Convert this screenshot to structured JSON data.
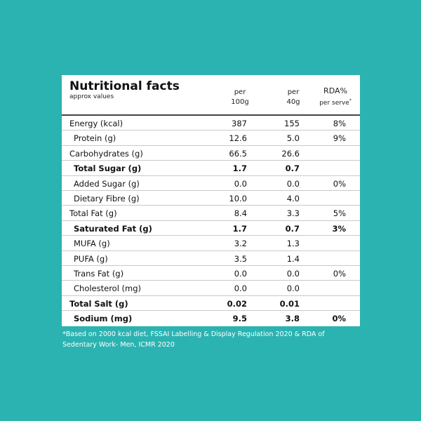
{
  "header": {
    "title": "Nutritional facts",
    "subtitle": "approx values",
    "columns": [
      {
        "line1": "per",
        "line2": "100g"
      },
      {
        "line1": "per",
        "line2": "40g"
      },
      {
        "line1": "RDA%",
        "line2": "per serve",
        "mark": "*"
      }
    ]
  },
  "table": {
    "rows": [
      {
        "label": "Energy (kcal)",
        "per_100g": "387",
        "per_40g": "155",
        "rda": "8%"
      },
      {
        "label": "Protein (g)",
        "per_100g": "12.6",
        "per_40g": "5.0",
        "rda": "9%",
        "indent": true
      },
      {
        "label": "Carbohydrates (g)",
        "per_100g": "66.5",
        "per_40g": "26.6"
      },
      {
        "label": "Total Sugar (g)",
        "per_100g": "1.7",
        "per_40g": "0.7",
        "indent": true,
        "bold": true
      },
      {
        "label": "Added Sugar (g)",
        "per_100g": "0.0",
        "per_40g": "0.0",
        "rda": "0%",
        "indent": true
      },
      {
        "label": "Dietary Fibre (g)",
        "per_100g": "10.0",
        "per_40g": "4.0",
        "indent": true
      },
      {
        "label": "Total Fat (g)",
        "per_100g": "8.4",
        "per_40g": "3.3",
        "rda": "5%"
      },
      {
        "label": "Saturated Fat (g)",
        "per_100g": "1.7",
        "per_40g": "0.7",
        "rda": "3%",
        "indent": true,
        "bold": true
      },
      {
        "label": "MUFA (g)",
        "per_100g": "3.2",
        "per_40g": "1.3",
        "indent": true
      },
      {
        "label": "PUFA (g)",
        "per_100g": "3.5",
        "per_40g": "1.4",
        "indent": true
      },
      {
        "label": "Trans Fat (g)",
        "per_100g": "0.0",
        "per_40g": "0.0",
        "rda": "0%",
        "indent": true
      },
      {
        "label": "Cholesterol (mg)",
        "per_100g": "0.0",
        "per_40g": "0.0",
        "indent": true
      },
      {
        "label": "Total Salt (g)",
        "per_100g": "0.02",
        "per_40g": "0.01",
        "bold": true
      },
      {
        "label": "Sodium (mg)",
        "per_100g": "9.5",
        "per_40g": "3.8",
        "rda": "0%",
        "indent": true,
        "bold": true
      }
    ]
  },
  "footnote": {
    "lines": [
      "*Based on 2000 kcal diet, FSSAI Labelling & Display Regulation 2020 & RDA of",
      "Sedentary Work- Men, ICMR 2020"
    ]
  }
}
